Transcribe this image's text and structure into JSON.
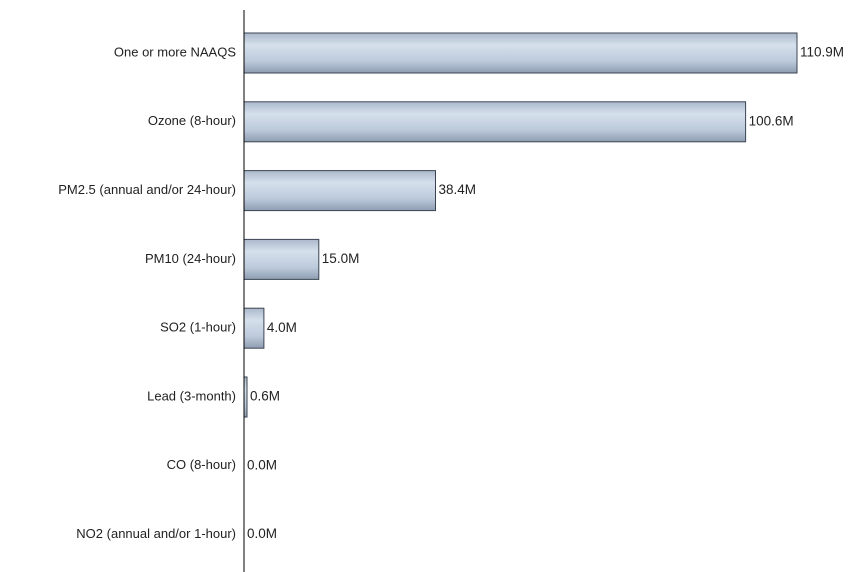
{
  "chart_data": {
    "type": "bar",
    "orientation": "horizontal",
    "categories": [
      "One or more NAAQS",
      "Ozone (8-hour)",
      "PM2.5 (annual and/or 24-hour)",
      "PM10 (24-hour)",
      "SO2 (1-hour)",
      "Lead (3-month)",
      "CO (8-hour)",
      "NO2 (annual and/or 1-hour)"
    ],
    "values": [
      110.9,
      100.6,
      38.4,
      15.0,
      4.0,
      0.6,
      0.0,
      0.0
    ],
    "value_labels": [
      "110.9M",
      "100.6M",
      "38.4M",
      "15.0M",
      "4.0M",
      "0.6M",
      "0.0M",
      "0.0M"
    ],
    "unit": "M",
    "xlim": [
      0,
      110.9
    ],
    "grid": false,
    "title": "",
    "xlabel": "",
    "ylabel": ""
  },
  "colors": {
    "bar_light": "#d3dde9",
    "bar_mid": "#b7c5d8",
    "bar_dark": "#8d9cb0",
    "bar_edge": "#3b4552",
    "axis": "#000000",
    "text": "#222222"
  }
}
